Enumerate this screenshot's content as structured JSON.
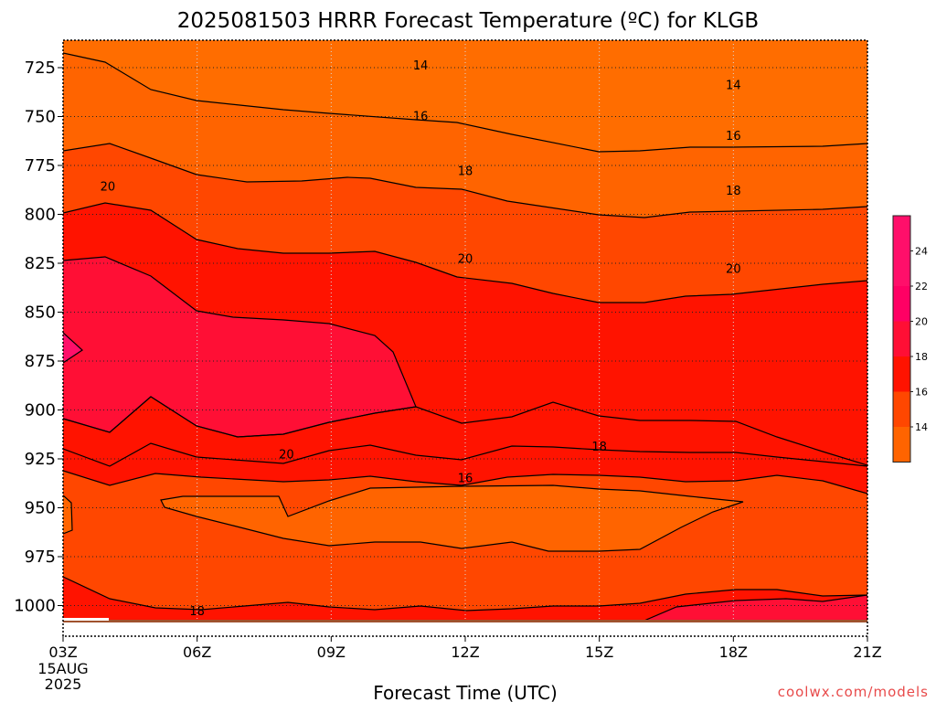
{
  "title": "2025081503 HRRR Forecast Temperature (ºC) for KLGB",
  "xlabel": "Forecast Time (UTC)",
  "watermark": "coolwx.com/models",
  "colors": {
    "t12": "#ff6d00",
    "t14": "#ff6400",
    "t16": "#ff4700",
    "t18": "#ff1300",
    "t20": "#ff0f35",
    "t22": "#ff0064",
    "t24": "#ff0f6a",
    "ground": "#a0522d",
    "axis": "#000000"
  },
  "chart_data": {
    "type": "contour",
    "title": "2025081503 HRRR Forecast Temperature (ºC) for KLGB",
    "xlabel": "Forecast Time (UTC)",
    "ylabel": "",
    "x_ticks": [
      "03Z",
      "06Z",
      "09Z",
      "12Z",
      "15Z",
      "18Z",
      "21Z"
    ],
    "x_first_tick_extra": [
      "15AUG",
      "2025"
    ],
    "y_ticks": [
      725,
      750,
      775,
      800,
      825,
      850,
      875,
      900,
      925,
      950,
      975,
      1000
    ],
    "ylim": [
      1012,
      712
    ],
    "y_scale": "pressure (hPa), inverted",
    "grid": true,
    "contour_levels": [
      14,
      16,
      18,
      20,
      22,
      24
    ],
    "colorbar_labels": [
      "14",
      "16",
      "18",
      "20",
      "22",
      "24"
    ],
    "contour_labels": [
      {
        "text": "14",
        "time": "11Z",
        "pressure": 724
      },
      {
        "text": "14",
        "time": "18Z",
        "pressure": 734
      },
      {
        "text": "16",
        "time": "11Z",
        "pressure": 750
      },
      {
        "text": "16",
        "time": "18Z",
        "pressure": 760
      },
      {
        "text": "18",
        "time": "12Z",
        "pressure": 778
      },
      {
        "text": "18",
        "time": "18Z",
        "pressure": 788
      },
      {
        "text": "20",
        "time": "04Z",
        "pressure": 786
      },
      {
        "text": "20",
        "time": "12Z",
        "pressure": 823
      },
      {
        "text": "20",
        "time": "18Z",
        "pressure": 828
      },
      {
        "text": "20",
        "time": "08Z",
        "pressure": 923
      },
      {
        "text": "18",
        "time": "15Z",
        "pressure": 919
      },
      {
        "text": "16",
        "time": "12Z",
        "pressure": 935
      },
      {
        "text": "18",
        "time": "06Z",
        "pressure": 1003
      }
    ]
  }
}
